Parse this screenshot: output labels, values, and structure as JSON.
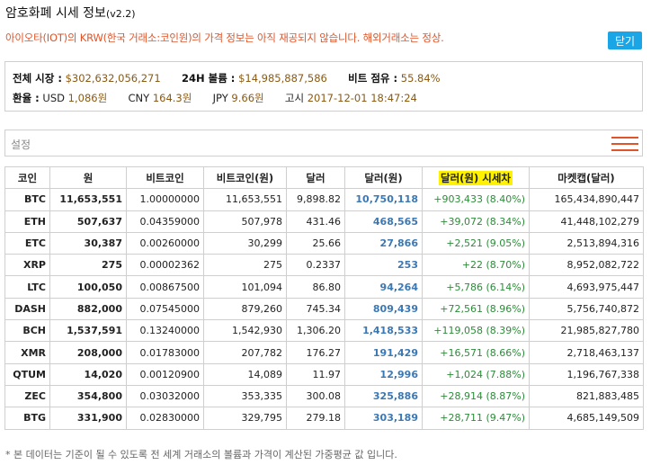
{
  "page": {
    "title": "암호화폐 시세 정보",
    "version": "(v2.2)",
    "notice": "아이오타(IOT)의 KRW(한국 거래소:코인원)의 가격 정보는 아직 재공되지 않습니다. 해외거래소는 정상.",
    "close_label": "닫기"
  },
  "summary": {
    "total_market_label": "전체 시장 :",
    "total_market_value": "$302,632,056,271",
    "volume_label": "24H 볼륨 :",
    "volume_value": "$14,985,887,586",
    "btc_share_label": "비트 점유 :",
    "btc_share_value": "55.84%",
    "fx_label": "환율 :",
    "usd_label": "USD",
    "usd_value": "1,086원",
    "cny_label": "CNY",
    "cny_value": "164.3원",
    "jpy_label": "JPY",
    "jpy_value": "9.66원",
    "time_label": "고시",
    "time_value": "2017-12-01 18:47:24"
  },
  "settings": {
    "label": "설정"
  },
  "table": {
    "headers": [
      "코인",
      "원",
      "비트코인",
      "비트코인(원)",
      "달러",
      "달러(원)",
      "달러(원) 시세차",
      "마켓캡(달러)"
    ],
    "rows": [
      {
        "coin": "BTC",
        "krw": "11,653,551",
        "btc": "1.00000000",
        "btc_krw": "11,653,551",
        "usd": "9,898.82",
        "usd_krw": "10,750,118",
        "diff": "+903,433 (8.40%)",
        "mcap": "165,434,890,447"
      },
      {
        "coin": "ETH",
        "krw": "507,637",
        "btc": "0.04359000",
        "btc_krw": "507,978",
        "usd": "431.46",
        "usd_krw": "468,565",
        "diff": "+39,072 (8.34%)",
        "mcap": "41,448,102,279"
      },
      {
        "coin": "ETC",
        "krw": "30,387",
        "btc": "0.00260000",
        "btc_krw": "30,299",
        "usd": "25.66",
        "usd_krw": "27,866",
        "diff": "+2,521 (9.05%)",
        "mcap": "2,513,894,316"
      },
      {
        "coin": "XRP",
        "krw": "275",
        "btc": "0.00002362",
        "btc_krw": "275",
        "usd": "0.2337",
        "usd_krw": "253",
        "diff": "+22 (8.70%)",
        "mcap": "8,952,082,722"
      },
      {
        "coin": "LTC",
        "krw": "100,050",
        "btc": "0.00867500",
        "btc_krw": "101,094",
        "usd": "86.80",
        "usd_krw": "94,264",
        "diff": "+5,786 (6.14%)",
        "mcap": "4,693,975,447"
      },
      {
        "coin": "DASH",
        "krw": "882,000",
        "btc": "0.07545000",
        "btc_krw": "879,260",
        "usd": "745.34",
        "usd_krw": "809,439",
        "diff": "+72,561 (8.96%)",
        "mcap": "5,756,740,872"
      },
      {
        "coin": "BCH",
        "krw": "1,537,591",
        "btc": "0.13240000",
        "btc_krw": "1,542,930",
        "usd": "1,306.20",
        "usd_krw": "1,418,533",
        "diff": "+119,058 (8.39%)",
        "mcap": "21,985,827,780"
      },
      {
        "coin": "XMR",
        "krw": "208,000",
        "btc": "0.01783000",
        "btc_krw": "207,782",
        "usd": "176.27",
        "usd_krw": "191,429",
        "diff": "+16,571 (8.66%)",
        "mcap": "2,718,463,137"
      },
      {
        "coin": "QTUM",
        "krw": "14,020",
        "btc": "0.00120900",
        "btc_krw": "14,089",
        "usd": "11.97",
        "usd_krw": "12,996",
        "diff": "+1,024 (7.88%)",
        "mcap": "1,196,767,338"
      },
      {
        "coin": "ZEC",
        "krw": "354,800",
        "btc": "0.03032000",
        "btc_krw": "353,335",
        "usd": "300.08",
        "usd_krw": "325,886",
        "diff": "+28,914 (8.87%)",
        "mcap": "821,883,485"
      },
      {
        "coin": "BTG",
        "krw": "331,900",
        "btc": "0.02830000",
        "btc_krw": "329,795",
        "usd": "279.18",
        "usd_krw": "303,189",
        "diff": "+28,711 (9.47%)",
        "mcap": "4,685,149,509"
      }
    ]
  },
  "footnote": "* 본 데이터는 기준이 될 수 있도록 전 세계 거래소의 볼륨과 가격이 계산된 가중평균 값 입니다.",
  "colors": {
    "accent": "#1aa6e6",
    "notice": "#e0542a",
    "positive": "#2e8b3a",
    "usd_krw": "#3b78b4",
    "highlight": "#fff200"
  }
}
